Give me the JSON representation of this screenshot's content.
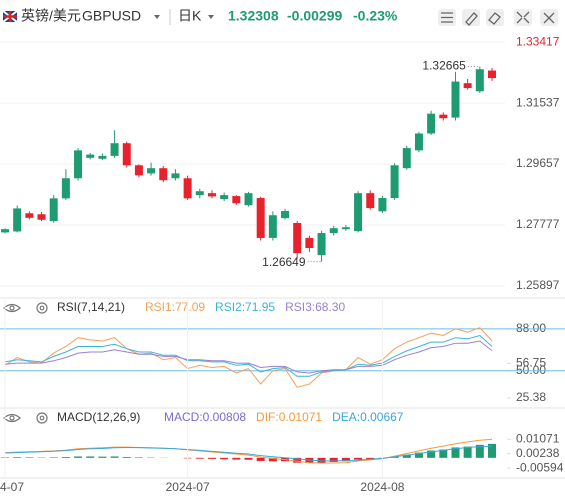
{
  "header": {
    "pair": "英镑/美元",
    "symbol": "GBPUSD",
    "period": "日K",
    "price": "1.32308",
    "change": "-0.00299",
    "change_pct": "-0.23%"
  },
  "chart_data": [
    {
      "type": "candlestick",
      "open": [
        1.2755,
        1.2758,
        1.2814,
        1.2811,
        1.279,
        1.286,
        1.2922,
        1.2985,
        1.2982,
        1.2991,
        1.303,
        1.2962,
        1.2937,
        1.2953,
        1.2922,
        1.2922,
        1.287,
        1.2876,
        1.2858,
        1.2867,
        1.2839,
        1.2861,
        1.2738,
        1.2799,
        1.2784,
        1.2738,
        1.2685,
        1.2753,
        1.2765,
        1.2759,
        1.2876,
        1.282,
        1.2861,
        1.2953,
        1.3008,
        1.306,
        1.3118,
        1.3109,
        1.3215,
        1.319,
        1.3254
      ],
      "high": [
        1.2768,
        1.2838,
        1.282,
        1.2818,
        1.287,
        1.295,
        1.3015,
        1.3,
        1.2998,
        1.307,
        1.3035,
        1.2965,
        1.297,
        1.296,
        1.295,
        1.293,
        1.289,
        1.2885,
        1.2878,
        1.287,
        1.288,
        1.2865,
        1.282,
        1.2828,
        1.279,
        1.2745,
        1.276,
        1.2775,
        1.2778,
        1.2882,
        1.2885,
        1.2868,
        1.2968,
        1.3022,
        1.3065,
        1.313,
        1.3125,
        1.325,
        1.3228,
        1.32665,
        1.3262
      ],
      "low": [
        1.2752,
        1.2755,
        1.2795,
        1.279,
        1.2785,
        1.2855,
        1.2915,
        1.298,
        1.2978,
        1.2985,
        1.2955,
        1.2925,
        1.293,
        1.291,
        1.2915,
        1.2855,
        1.286,
        1.286,
        1.2852,
        1.284,
        1.2835,
        1.273,
        1.273,
        1.2795,
        1.2675,
        1.2695,
        1.26649,
        1.2745,
        1.276,
        1.2755,
        1.2825,
        1.2815,
        1.2855,
        1.2948,
        1.3002,
        1.3055,
        1.31,
        1.31,
        1.3195,
        1.3185,
        1.3222
      ],
      "close": [
        1.2765,
        1.2829,
        1.28,
        1.2794,
        1.286,
        1.2922,
        1.3008,
        1.2995,
        1.2991,
        1.303,
        1.2962,
        1.2931,
        1.2953,
        1.2916,
        1.2937,
        1.286,
        1.2882,
        1.2866,
        1.287,
        1.2845,
        1.2876,
        1.2738,
        1.2808,
        1.2821,
        1.2691,
        1.2707,
        1.2753,
        1.2768,
        1.2771,
        1.2876,
        1.283,
        1.2861,
        1.2962,
        1.3015,
        1.306,
        1.3121,
        1.3107,
        1.322,
        1.32,
        1.3258,
        1.32308
      ],
      "up_color": "#1f9b72",
      "down_color": "#e8222c",
      "ylim": [
        1.2559,
        1.3379
      ],
      "yticks": [
        1.33417,
        1.31537,
        1.29657,
        1.27777,
        1.25897
      ],
      "grid": true,
      "high_label": "1.32665",
      "low_label": "1.26649"
    },
    {
      "type": "line",
      "title": "RSI(7,14,21)",
      "series": [
        {
          "name": "RSI1:77.09",
          "color": "#f4a05a",
          "values": [
            55,
            62,
            58,
            57,
            66,
            72,
            80,
            78,
            77,
            80,
            70,
            65,
            66,
            60,
            62,
            52,
            55,
            53,
            54,
            48,
            52,
            38,
            50,
            52,
            35,
            38,
            48,
            50,
            51,
            62,
            56,
            60,
            70,
            76,
            80,
            84,
            82,
            88,
            85,
            89,
            77.09
          ]
        },
        {
          "name": "RSI2:71.95",
          "color": "#3ab5d6",
          "values": [
            58,
            60,
            59,
            58,
            63,
            67,
            72,
            72,
            72,
            74,
            70,
            67,
            67,
            64,
            64,
            59,
            59,
            58,
            58,
            55,
            56,
            49,
            52,
            53,
            45,
            45,
            49,
            50,
            51,
            56,
            55,
            57,
            63,
            68,
            72,
            76,
            76,
            80,
            79,
            82,
            71.95
          ]
        },
        {
          "name": "RSI3:68.30",
          "color": "#9a7fd2",
          "values": [
            56,
            57,
            57,
            57,
            59,
            62,
            66,
            67,
            67,
            69,
            67,
            65,
            65,
            63,
            63,
            60,
            60,
            59,
            59,
            57,
            57,
            53,
            54,
            54,
            49,
            48,
            50,
            51,
            51,
            54,
            54,
            55,
            60,
            64,
            67,
            71,
            72,
            75,
            75,
            77,
            68.3
          ]
        }
      ],
      "ylim": [
        19,
        96
      ],
      "yticks": [
        {
          "value": 88,
          "label": "88.00"
        },
        56.75,
        {
          "value": 50,
          "label": "50.00"
        },
        25.38
      ],
      "hlines": [
        88,
        50
      ],
      "hline_color": "#6cbde6"
    },
    {
      "type": "bar",
      "title": "MACD(12,26,9)",
      "categories": [
        "4-07",
        null,
        null,
        null,
        null,
        null,
        null,
        null,
        null,
        null,
        null,
        null,
        null,
        null,
        null,
        "2024-07",
        null,
        null,
        null,
        null,
        null,
        null,
        null,
        null,
        null,
        null,
        null,
        null,
        null,
        null,
        null,
        "2024-08",
        null,
        null,
        null,
        null,
        null,
        null,
        null,
        null,
        null
      ],
      "series": [
        {
          "name": "MACD:0.00808",
          "type": "bar",
          "color": "#1f9b72",
          "negative_color": "#e8222c",
          "legend_color": "#7a6bd1",
          "values": [
            0.0003,
            0.0004,
            0.0003,
            0.0002,
            0.0003,
            0.0005,
            0.0008,
            0.0008,
            0.0007,
            0.0008,
            0.0005,
            0.0003,
            0.0002,
            0.0001,
            0.0,
            -0.0003,
            -0.0005,
            -0.0006,
            -0.0008,
            -0.001,
            -0.0011,
            -0.0018,
            -0.002,
            -0.002,
            -0.0028,
            -0.003,
            -0.0027,
            -0.0024,
            -0.002,
            -0.001,
            -0.0007,
            -0.0003,
            0.0008,
            0.0018,
            0.003,
            0.0042,
            0.0048,
            0.006,
            0.0065,
            0.0075,
            0.00808
          ]
        },
        {
          "name": "DIF:0.01071",
          "type": "line",
          "color": "#f59a3c",
          "values": [
            0.003,
            0.0033,
            0.0035,
            0.0037,
            0.004,
            0.0045,
            0.0052,
            0.0056,
            0.0058,
            0.0062,
            0.0062,
            0.006,
            0.0058,
            0.0055,
            0.0052,
            0.0046,
            0.004,
            0.0034,
            0.0028,
            0.0022,
            0.0016,
            0.0004,
            -0.0004,
            -0.001,
            -0.002,
            -0.0028,
            -0.003,
            -0.003,
            -0.0028,
            -0.0018,
            -0.0012,
            -0.0005,
            0.001,
            0.0025,
            0.004,
            0.0055,
            0.0068,
            0.0082,
            0.0092,
            0.0102,
            0.01071
          ]
        },
        {
          "name": "DEA:0.00667",
          "type": "line",
          "color": "#3aa6dd",
          "values": [
            0.0028,
            0.003,
            0.0033,
            0.0035,
            0.0038,
            0.0042,
            0.0048,
            0.0052,
            0.0054,
            0.0058,
            0.006,
            0.0059,
            0.0057,
            0.0055,
            0.0052,
            0.0048,
            0.0043,
            0.0037,
            0.0032,
            0.0027,
            0.0022,
            0.0013,
            0.0006,
            0.0,
            -0.0006,
            -0.0013,
            -0.0017,
            -0.0018,
            -0.0016,
            -0.0013,
            -0.0008,
            -0.0003,
            0.0006,
            0.0016,
            0.0025,
            0.0034,
            0.0044,
            0.0052,
            0.006,
            0.0065,
            0.00667
          ]
        }
      ],
      "ylim": [
        -0.0105,
        0.0265
      ],
      "yticks": [
        0.01071,
        0.00238,
        -0.00594
      ]
    }
  ]
}
